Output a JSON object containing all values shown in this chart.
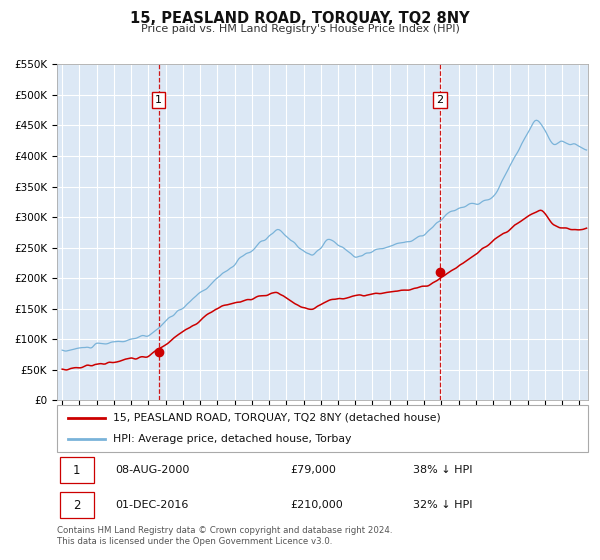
{
  "title": "15, PEASLAND ROAD, TORQUAY, TQ2 8NY",
  "subtitle": "Price paid vs. HM Land Registry's House Price Index (HPI)",
  "plot_bg": "#dce8f5",
  "grid_color": "#ffffff",
  "hpi_color": "#7ab3d9",
  "price_color": "#cc0000",
  "vline_color": "#cc0000",
  "fig_bg": "#f0f0f0",
  "ylim": [
    0,
    550000
  ],
  "yticks": [
    0,
    50000,
    100000,
    150000,
    200000,
    250000,
    300000,
    350000,
    400000,
    450000,
    500000,
    550000
  ],
  "ytick_labels": [
    "£0",
    "£50K",
    "£100K",
    "£150K",
    "£200K",
    "£250K",
    "£300K",
    "£350K",
    "£400K",
    "£450K",
    "£500K",
    "£550K"
  ],
  "xlim_start": 1994.7,
  "xlim_end": 2025.5,
  "sale1_x": 2000.6,
  "sale1_y": 79000,
  "sale2_x": 2016.92,
  "sale2_y": 210000,
  "vline1_x": 2000.6,
  "vline2_x": 2016.92,
  "legend_line1": "15, PEASLAND ROAD, TORQUAY, TQ2 8NY (detached house)",
  "legend_line2": "HPI: Average price, detached house, Torbay",
  "annotation1_label": "1",
  "annotation1_date": "08-AUG-2000",
  "annotation1_price": "£79,000",
  "annotation1_hpi": "38% ↓ HPI",
  "annotation2_label": "2",
  "annotation2_date": "01-DEC-2016",
  "annotation2_price": "£210,000",
  "annotation2_hpi": "32% ↓ HPI",
  "footer": "Contains HM Land Registry data © Crown copyright and database right 2024.\nThis data is licensed under the Open Government Licence v3.0."
}
